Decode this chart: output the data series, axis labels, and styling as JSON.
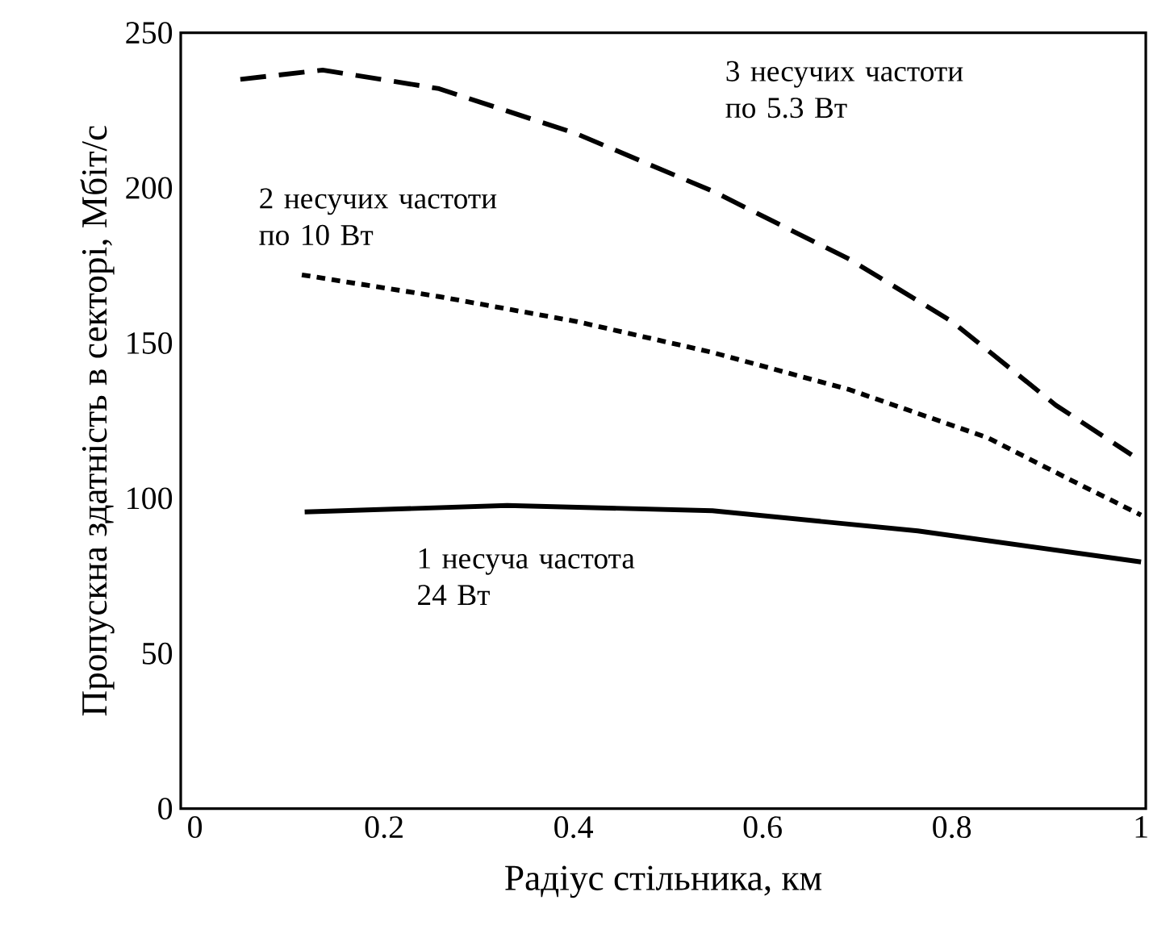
{
  "chart_data": {
    "type": "line",
    "xlabel": "Радіус стільника, км",
    "ylabel": "Пропускна здатність в секторі, Мбіт/с",
    "xlim": [
      -0.015,
      1.005
    ],
    "ylim": [
      0,
      250
    ],
    "xticks": [
      0,
      0.2,
      0.4,
      0.6,
      0.8,
      1
    ],
    "yticks": [
      0,
      50,
      100,
      150,
      200,
      250
    ],
    "grid": false,
    "legend": false,
    "marker": "none",
    "series": [
      {
        "name": "1 несуча частота 24 Вт",
        "color": "#000000",
        "line_style": "solid",
        "x": [
          0.116,
          0.33,
          0.547,
          0.764,
          1.0
        ],
        "values": [
          95.6,
          97.7,
          96,
          89.5,
          79.5
        ]
      },
      {
        "name": "2 несучих частоти по 10 Вт",
        "color": "#000000",
        "line_style": "dotted",
        "x": [
          0.113,
          0.258,
          0.403,
          0.547,
          0.692,
          0.838,
          0.925,
          1.0
        ],
        "values": [
          172,
          165,
          157,
          147,
          135,
          119.5,
          106,
          94.6
        ]
      },
      {
        "name": "3 несучих частоти по 5.3 Вт",
        "color": "#000000",
        "line_style": "dashed",
        "x": [
          0.048,
          0.135,
          0.258,
          0.403,
          0.547,
          0.692,
          0.8,
          0.91,
          0.99
        ],
        "values": [
          235,
          238,
          232,
          217.5,
          199,
          177,
          157,
          130,
          114
        ]
      }
    ]
  }
}
